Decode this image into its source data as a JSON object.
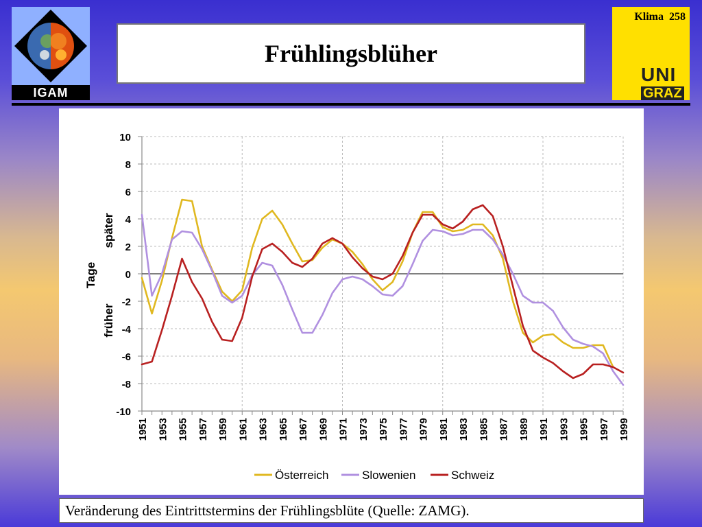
{
  "header": {
    "title": "Frühlingsblüher",
    "page_ref": "Klima  258",
    "logo_left_text": "IGAM",
    "logo_right_text_top": "UNI",
    "logo_right_text_bottom": "GRAZ"
  },
  "caption": "Veränderung des Eintrittstermins der Frühlingsblüte (Quelle: ZAMG).",
  "chart_data": {
    "type": "line",
    "ylabel": "Tage",
    "ylabel_upper": "später",
    "ylabel_lower": "früher",
    "xlim": [
      1951,
      1999
    ],
    "ylim": [
      -10,
      10
    ],
    "yticks": [
      -10,
      -8,
      -6,
      -4,
      -2,
      0,
      2,
      4,
      6,
      8,
      10
    ],
    "xticks": [
      1951,
      1953,
      1955,
      1957,
      1959,
      1961,
      1963,
      1965,
      1967,
      1969,
      1971,
      1973,
      1975,
      1977,
      1979,
      1981,
      1983,
      1985,
      1987,
      1989,
      1991,
      1993,
      1995,
      1997,
      1999
    ],
    "grid": true,
    "legend_position": "bottom",
    "series": [
      {
        "name": "Österreich",
        "color": "#e0b820",
        "x": [
          1951,
          1952,
          1953,
          1954,
          1955,
          1956,
          1957,
          1958,
          1959,
          1960,
          1961,
          1962,
          1963,
          1964,
          1965,
          1966,
          1967,
          1968,
          1969,
          1970,
          1971,
          1972,
          1973,
          1974,
          1975,
          1976,
          1977,
          1978,
          1979,
          1980,
          1981,
          1982,
          1983,
          1984,
          1985,
          1986,
          1987,
          1988,
          1989,
          1990,
          1991,
          1992,
          1993,
          1994,
          1995,
          1996,
          1997,
          1998
        ],
        "values": [
          -0.3,
          -2.9,
          -0.5,
          2.6,
          5.4,
          5.3,
          2.0,
          0.3,
          -1.3,
          -2.0,
          -1.2,
          1.9,
          4.0,
          4.6,
          3.6,
          2.2,
          0.9,
          1.0,
          1.9,
          2.5,
          2.2,
          1.6,
          0.7,
          -0.4,
          -1.2,
          -0.6,
          0.9,
          3.0,
          4.5,
          4.5,
          3.4,
          3.1,
          3.2,
          3.6,
          3.6,
          2.8,
          1.1,
          -2.0,
          -4.3,
          -5.0,
          -4.5,
          -4.4,
          -5.0,
          -5.4,
          -5.4,
          -5.2,
          -5.2,
          -6.8
        ]
      },
      {
        "name": "Slowenien",
        "color": "#b090e0",
        "x": [
          1951,
          1952,
          1953,
          1954,
          1955,
          1956,
          1957,
          1958,
          1959,
          1960,
          1961,
          1962,
          1963,
          1964,
          1965,
          1966,
          1967,
          1968,
          1969,
          1970,
          1971,
          1972,
          1973,
          1974,
          1975,
          1976,
          1977,
          1978,
          1979,
          1980,
          1981,
          1982,
          1983,
          1984,
          1985,
          1986,
          1987,
          1988,
          1989,
          1990,
          1991,
          1992,
          1993,
          1994,
          1995,
          1996,
          1997,
          1998,
          1999
        ],
        "values": [
          4.3,
          -1.6,
          0.0,
          2.5,
          3.1,
          3.0,
          1.8,
          0.2,
          -1.6,
          -2.1,
          -1.6,
          -0.1,
          0.8,
          0.6,
          -0.8,
          -2.6,
          -4.3,
          -4.3,
          -3.0,
          -1.4,
          -0.4,
          -0.2,
          -0.4,
          -0.9,
          -1.5,
          -1.6,
          -0.9,
          0.7,
          2.4,
          3.2,
          3.1,
          2.8,
          2.9,
          3.2,
          3.2,
          2.5,
          1.4,
          0.0,
          -1.6,
          -2.1,
          -2.1,
          -2.7,
          -3.9,
          -4.8,
          -5.1,
          -5.3,
          -5.8,
          -7.1,
          -8.1
        ]
      },
      {
        "name": "Schweiz",
        "color": "#b82020",
        "x": [
          1951,
          1952,
          1953,
          1954,
          1955,
          1956,
          1957,
          1958,
          1959,
          1960,
          1961,
          1962,
          1963,
          1964,
          1965,
          1966,
          1967,
          1968,
          1969,
          1970,
          1971,
          1972,
          1973,
          1974,
          1975,
          1976,
          1977,
          1978,
          1979,
          1980,
          1981,
          1982,
          1983,
          1984,
          1985,
          1986,
          1987,
          1988,
          1989,
          1990,
          1991,
          1992,
          1993,
          1994,
          1995,
          1996,
          1997,
          1998,
          1999
        ],
        "values": [
          -6.6,
          -6.4,
          -4.1,
          -1.6,
          1.1,
          -0.6,
          -1.8,
          -3.5,
          -4.8,
          -4.9,
          -3.2,
          -0.2,
          1.8,
          2.2,
          1.6,
          0.8,
          0.5,
          1.1,
          2.2,
          2.6,
          2.2,
          1.2,
          0.4,
          -0.2,
          -0.4,
          0.0,
          1.3,
          3.0,
          4.3,
          4.3,
          3.6,
          3.3,
          3.8,
          4.7,
          5.0,
          4.2,
          2.0,
          -0.9,
          -3.8,
          -5.6,
          -6.1,
          -6.5,
          -7.1,
          -7.6,
          -7.3,
          -6.6,
          -6.6,
          -6.8,
          -7.2
        ]
      }
    ]
  }
}
